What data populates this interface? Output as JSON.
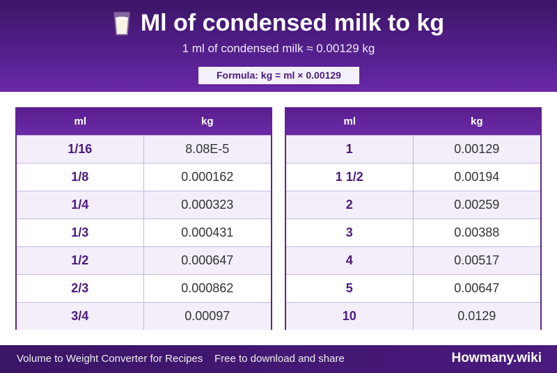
{
  "header": {
    "title": "Ml of condensed milk to kg",
    "subtitle": "1 ml of condensed milk ≈ 0.00129 kg",
    "formula": "Formula: kg = ml × 0.00129",
    "icon": "milk-glass-icon"
  },
  "table_left": {
    "col_ml": "ml",
    "col_kg": "kg",
    "rows": [
      {
        "ml": "1/16",
        "kg": "8.08E-5"
      },
      {
        "ml": "1/8",
        "kg": "0.000162"
      },
      {
        "ml": "1/4",
        "kg": "0.000323"
      },
      {
        "ml": "1/3",
        "kg": "0.000431"
      },
      {
        "ml": "1/2",
        "kg": "0.000647"
      },
      {
        "ml": "2/3",
        "kg": "0.000862"
      },
      {
        "ml": "3/4",
        "kg": "0.00097"
      }
    ]
  },
  "table_right": {
    "col_ml": "ml",
    "col_kg": "kg",
    "rows": [
      {
        "ml": "1",
        "kg": "0.00129"
      },
      {
        "ml": "1 1/2",
        "kg": "0.00194"
      },
      {
        "ml": "2",
        "kg": "0.00259"
      },
      {
        "ml": "3",
        "kg": "0.00388"
      },
      {
        "ml": "4",
        "kg": "0.00517"
      },
      {
        "ml": "5",
        "kg": "0.00647"
      },
      {
        "ml": "10",
        "kg": "0.0129"
      }
    ]
  },
  "footer": {
    "left": "Volume to Weight Converter for Recipes",
    "mid": "Free to download and share",
    "brand": "Howmany.wiki"
  },
  "colors": {
    "primary": "#55208e",
    "header_dark": "#3b1566",
    "row_alt": "#f3eefa",
    "ml_text": "#4a1a7e"
  }
}
